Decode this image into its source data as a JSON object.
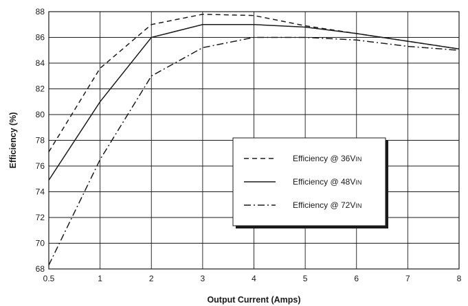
{
  "chart_data": {
    "type": "line",
    "xlabel": "Output Current (Amps)",
    "ylabel": "Efficiency (%)",
    "x_ticks": [
      0.5,
      1,
      2,
      3,
      4,
      5,
      6,
      7,
      8
    ],
    "y_ticks": [
      68,
      70,
      72,
      74,
      76,
      78,
      80,
      82,
      84,
      86,
      88
    ],
    "ylim": [
      68,
      88
    ],
    "grid": true,
    "legend_position": "center-right",
    "series": [
      {
        "name_main": "Efficiency @ 36V",
        "name_sub": "IN",
        "line_style": "dashed",
        "color": "#1a1a1a",
        "values": [
          77.1,
          83.6,
          87.0,
          87.8,
          87.7,
          86.9,
          86.3,
          85.7,
          85.1
        ]
      },
      {
        "name_main": "Efficiency @ 48V",
        "name_sub": "IN",
        "line_style": "solid",
        "color": "#1a1a1a",
        "values": [
          74.9,
          81.0,
          86.0,
          87.0,
          87.0,
          86.8,
          86.3,
          85.7,
          85.1
        ]
      },
      {
        "name_main": "Efficiency @ 72V",
        "name_sub": "IN",
        "line_style": "dash-dot",
        "color": "#1a1a1a",
        "values": [
          68.3,
          76.5,
          83.0,
          85.2,
          86.0,
          86.0,
          85.8,
          85.3,
          85.0
        ]
      }
    ]
  }
}
